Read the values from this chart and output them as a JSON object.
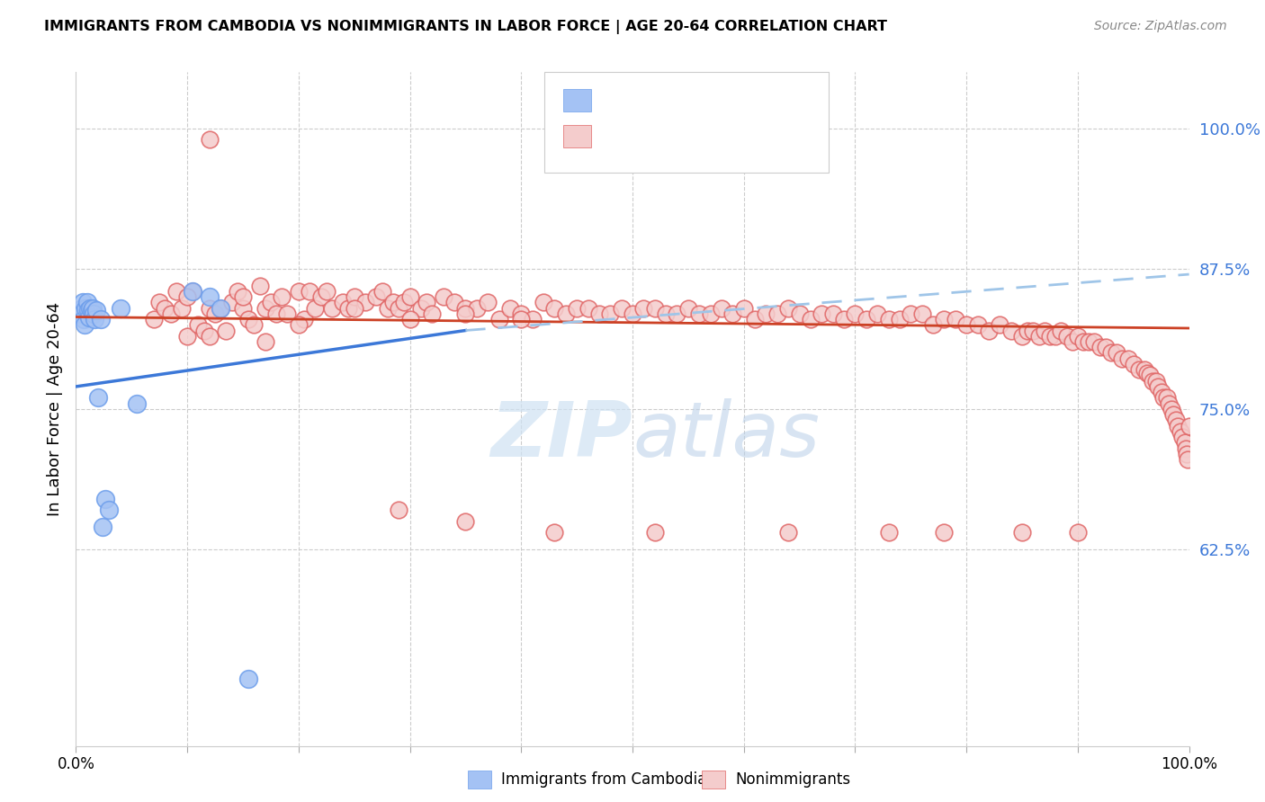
{
  "title": "IMMIGRANTS FROM CAMBODIA VS NONIMMIGRANTS IN LABOR FORCE | AGE 20-64 CORRELATION CHART",
  "source": "Source: ZipAtlas.com",
  "ylabel": "In Labor Force | Age 20-64",
  "xlim": [
    0.0,
    1.0
  ],
  "ylim": [
    0.45,
    1.05
  ],
  "yticks": [
    0.625,
    0.75,
    0.875,
    1.0
  ],
  "ytick_labels": [
    "62.5%",
    "75.0%",
    "87.5%",
    "100.0%"
  ],
  "xtick_labels": [
    "0.0%",
    "",
    "",
    "",
    "",
    "",
    "",
    "",
    "",
    "",
    "100.0%"
  ],
  "blue_color": "#a4c2f4",
  "blue_edge": "#6d9eeb",
  "pink_color": "#f4cccc",
  "pink_edge": "#e06666",
  "trend_blue": "#3c78d8",
  "trend_pink": "#cc4125",
  "trend_dash_color": "#9fc5e8",
  "background_color": "#ffffff",
  "grid_color": "#cccccc",
  "watermark_color": "#cfe2f3",
  "cambodia_x": [
    0.003,
    0.005,
    0.006,
    0.007,
    0.008,
    0.009,
    0.01,
    0.011,
    0.012,
    0.013,
    0.014,
    0.015,
    0.016,
    0.017,
    0.018,
    0.02,
    0.022,
    0.024,
    0.026,
    0.03,
    0.04,
    0.055,
    0.105,
    0.12,
    0.13,
    0.155
  ],
  "cambodia_y": [
    0.835,
    0.84,
    0.845,
    0.83,
    0.825,
    0.84,
    0.845,
    0.838,
    0.832,
    0.84,
    0.838,
    0.84,
    0.835,
    0.83,
    0.838,
    0.76,
    0.83,
    0.645,
    0.67,
    0.66,
    0.84,
    0.755,
    0.855,
    0.85,
    0.84,
    0.51
  ],
  "non_x": [
    0.07,
    0.075,
    0.08,
    0.085,
    0.09,
    0.095,
    0.1,
    0.105,
    0.11,
    0.115,
    0.12,
    0.12,
    0.125,
    0.13,
    0.135,
    0.14,
    0.145,
    0.15,
    0.155,
    0.16,
    0.165,
    0.17,
    0.175,
    0.18,
    0.185,
    0.19,
    0.2,
    0.205,
    0.21,
    0.215,
    0.22,
    0.225,
    0.23,
    0.24,
    0.245,
    0.25,
    0.26,
    0.27,
    0.275,
    0.28,
    0.285,
    0.29,
    0.295,
    0.3,
    0.31,
    0.315,
    0.32,
    0.33,
    0.34,
    0.35,
    0.36,
    0.37,
    0.38,
    0.39,
    0.4,
    0.41,
    0.42,
    0.43,
    0.44,
    0.45,
    0.46,
    0.47,
    0.48,
    0.49,
    0.5,
    0.51,
    0.52,
    0.53,
    0.54,
    0.55,
    0.56,
    0.57,
    0.58,
    0.59,
    0.6,
    0.61,
    0.62,
    0.63,
    0.64,
    0.65,
    0.66,
    0.67,
    0.68,
    0.69,
    0.7,
    0.71,
    0.72,
    0.73,
    0.74,
    0.75,
    0.76,
    0.77,
    0.78,
    0.79,
    0.8,
    0.81,
    0.82,
    0.83,
    0.84,
    0.85,
    0.855,
    0.86,
    0.865,
    0.87,
    0.875,
    0.88,
    0.885,
    0.89,
    0.895,
    0.9,
    0.905,
    0.91,
    0.915,
    0.92,
    0.925,
    0.93,
    0.935,
    0.94,
    0.945,
    0.95,
    0.955,
    0.96,
    0.962,
    0.965,
    0.967,
    0.97,
    0.972,
    0.975,
    0.977,
    0.98,
    0.982,
    0.984,
    0.986,
    0.988,
    0.99,
    0.992,
    0.994,
    0.996,
    0.997,
    0.998,
    0.999,
    1.0,
    0.12,
    0.17,
    0.29,
    0.35,
    0.43,
    0.52,
    0.64,
    0.73,
    0.78,
    0.85,
    0.9,
    0.1,
    0.15,
    0.2,
    0.25,
    0.3,
    0.35,
    0.4
  ],
  "non_y": [
    0.83,
    0.845,
    0.84,
    0.835,
    0.855,
    0.84,
    0.815,
    0.855,
    0.825,
    0.82,
    0.84,
    0.99,
    0.835,
    0.84,
    0.82,
    0.845,
    0.855,
    0.84,
    0.83,
    0.825,
    0.86,
    0.84,
    0.845,
    0.835,
    0.85,
    0.835,
    0.855,
    0.83,
    0.855,
    0.84,
    0.85,
    0.855,
    0.84,
    0.845,
    0.84,
    0.85,
    0.845,
    0.85,
    0.855,
    0.84,
    0.845,
    0.84,
    0.845,
    0.85,
    0.84,
    0.845,
    0.835,
    0.85,
    0.845,
    0.84,
    0.84,
    0.845,
    0.83,
    0.84,
    0.835,
    0.83,
    0.845,
    0.84,
    0.835,
    0.84,
    0.84,
    0.835,
    0.835,
    0.84,
    0.835,
    0.84,
    0.84,
    0.835,
    0.835,
    0.84,
    0.835,
    0.835,
    0.84,
    0.835,
    0.84,
    0.83,
    0.835,
    0.835,
    0.84,
    0.835,
    0.83,
    0.835,
    0.835,
    0.83,
    0.835,
    0.83,
    0.835,
    0.83,
    0.83,
    0.835,
    0.835,
    0.825,
    0.83,
    0.83,
    0.825,
    0.825,
    0.82,
    0.825,
    0.82,
    0.815,
    0.82,
    0.82,
    0.815,
    0.82,
    0.815,
    0.815,
    0.82,
    0.815,
    0.81,
    0.815,
    0.81,
    0.81,
    0.81,
    0.805,
    0.805,
    0.8,
    0.8,
    0.795,
    0.795,
    0.79,
    0.785,
    0.785,
    0.782,
    0.78,
    0.775,
    0.775,
    0.77,
    0.765,
    0.76,
    0.76,
    0.755,
    0.75,
    0.745,
    0.74,
    0.735,
    0.73,
    0.725,
    0.72,
    0.715,
    0.71,
    0.705,
    0.735,
    0.815,
    0.81,
    0.66,
    0.65,
    0.64,
    0.64,
    0.64,
    0.64,
    0.64,
    0.64,
    0.64,
    0.85,
    0.85,
    0.825,
    0.84,
    0.83,
    0.835,
    0.83
  ],
  "blue_line_x": [
    0.0,
    0.35
  ],
  "blue_line_y": [
    0.77,
    0.82
  ],
  "dash_line_x": [
    0.35,
    1.0
  ],
  "dash_line_y": [
    0.82,
    0.87
  ],
  "pink_line_x": [
    0.0,
    1.0
  ],
  "pink_line_y": [
    0.832,
    0.822
  ]
}
